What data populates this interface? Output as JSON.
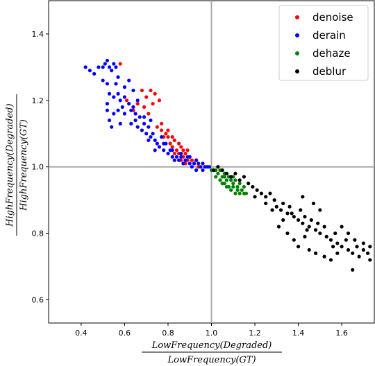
{
  "chart_data": {
    "type": "scatter",
    "xlabel_numerator": "LowFrequency(Degraded)",
    "xlabel_denominator": "LowFrequency(GT)",
    "ylabel_numerator": "HighFrequency(Degraded)",
    "ylabel_denominator": "HighFrequency(GT)",
    "xlim": [
      0.25,
      1.75
    ],
    "ylim": [
      0.53,
      1.5
    ],
    "xticks": [
      "0.4",
      "0.6",
      "0.8",
      "1.0",
      "1.2",
      "1.4",
      "1.6"
    ],
    "xtick_values": [
      0.4,
      0.6,
      0.8,
      1.0,
      1.2,
      1.4,
      1.6
    ],
    "yticks": [
      "0.6",
      "0.8",
      "1.0",
      "1.2",
      "1.4"
    ],
    "ytick_values": [
      0.6,
      0.8,
      1.0,
      1.2,
      1.4
    ],
    "reference_lines": {
      "x": 1.0,
      "y": 1.0,
      "color": "#aaaaaa"
    },
    "legend_position": "top-right",
    "series": [
      {
        "name": "denoise",
        "color": "#ff0000",
        "points": [
          [
            0.58,
            1.31
          ],
          [
            0.61,
            1.2
          ],
          [
            0.64,
            1.17
          ],
          [
            0.66,
            1.19
          ],
          [
            0.68,
            1.23
          ],
          [
            0.69,
            1.18
          ],
          [
            0.7,
            1.21
          ],
          [
            0.71,
            1.16
          ],
          [
            0.72,
            1.23
          ],
          [
            0.73,
            1.19
          ],
          [
            0.74,
            1.22
          ],
          [
            0.75,
            1.12
          ],
          [
            0.76,
            1.2
          ],
          [
            0.77,
            1.13
          ],
          [
            0.78,
            1.09
          ],
          [
            0.79,
            1.1
          ],
          [
            0.8,
            1.11
          ],
          [
            0.81,
            1.07
          ],
          [
            0.82,
            1.06
          ],
          [
            0.83,
            1.08
          ],
          [
            0.84,
            1.05
          ],
          [
            0.85,
            1.07
          ],
          [
            0.85,
            1.04
          ],
          [
            0.86,
            1.06
          ],
          [
            0.87,
            1.03
          ],
          [
            0.87,
            1.05
          ],
          [
            0.88,
            1.04
          ],
          [
            0.89,
            1.02
          ],
          [
            0.9,
            1.03
          ],
          [
            0.91,
            1.02
          ],
          [
            0.92,
            1.01
          ],
          [
            0.93,
            1.02
          ],
          [
            0.94,
            1.0
          ],
          [
            0.83,
            1.04
          ],
          [
            0.86,
            1.02
          ],
          [
            0.89,
            1.05
          ],
          [
            0.8,
            1.09
          ],
          [
            0.77,
            1.11
          ],
          [
            0.82,
            1.09
          ],
          [
            0.88,
            1.01
          ]
        ]
      },
      {
        "name": "derain",
        "color": "#0000ff",
        "points": [
          [
            0.42,
            1.3
          ],
          [
            0.44,
            1.29
          ],
          [
            0.46,
            1.28
          ],
          [
            0.48,
            1.3
          ],
          [
            0.5,
            1.3
          ],
          [
            0.51,
            1.31
          ],
          [
            0.52,
            1.32
          ],
          [
            0.53,
            1.3
          ],
          [
            0.54,
            1.29
          ],
          [
            0.55,
            1.31
          ],
          [
            0.56,
            1.3
          ],
          [
            0.57,
            1.27
          ],
          [
            0.52,
            1.25
          ],
          [
            0.5,
            1.26
          ],
          [
            0.53,
            1.22
          ],
          [
            0.55,
            1.21
          ],
          [
            0.57,
            1.22
          ],
          [
            0.58,
            1.2
          ],
          [
            0.6,
            1.24
          ],
          [
            0.59,
            1.18
          ],
          [
            0.57,
            1.17
          ],
          [
            0.55,
            1.16
          ],
          [
            0.53,
            1.14
          ],
          [
            0.52,
            1.17
          ],
          [
            0.54,
            1.12
          ],
          [
            0.58,
            1.13
          ],
          [
            0.6,
            1.16
          ],
          [
            0.62,
            1.19
          ],
          [
            0.63,
            1.13
          ],
          [
            0.64,
            1.18
          ],
          [
            0.65,
            1.14
          ],
          [
            0.66,
            1.12
          ],
          [
            0.67,
            1.15
          ],
          [
            0.68,
            1.11
          ],
          [
            0.69,
            1.13
          ],
          [
            0.7,
            1.1
          ],
          [
            0.71,
            1.12
          ],
          [
            0.72,
            1.09
          ],
          [
            0.73,
            1.1
          ],
          [
            0.74,
            1.08
          ],
          [
            0.75,
            1.07
          ],
          [
            0.76,
            1.06
          ],
          [
            0.77,
            1.09
          ],
          [
            0.78,
            1.05
          ],
          [
            0.79,
            1.07
          ],
          [
            0.8,
            1.04
          ],
          [
            0.81,
            1.05
          ],
          [
            0.82,
            1.03
          ],
          [
            0.83,
            1.02
          ],
          [
            0.84,
            1.03
          ],
          [
            0.85,
            1.02
          ],
          [
            0.86,
            1.03
          ],
          [
            0.87,
            1.01
          ],
          [
            0.88,
            1.02
          ],
          [
            0.89,
            1.03
          ],
          [
            0.9,
            1.01
          ],
          [
            0.91,
            1.0
          ],
          [
            0.92,
            1.01
          ],
          [
            0.93,
            1.02
          ],
          [
            0.94,
            1.01
          ],
          [
            0.95,
            1.0
          ],
          [
            0.96,
            1.01
          ],
          [
            0.97,
            1.0
          ],
          [
            0.98,
            1.0
          ],
          [
            0.99,
            1.0
          ],
          [
            0.62,
            1.26
          ],
          [
            0.64,
            1.23
          ],
          [
            0.66,
            1.2
          ],
          [
            0.63,
            1.17
          ],
          [
            0.65,
            1.16
          ],
          [
            0.6,
            1.21
          ],
          [
            0.56,
            1.25
          ],
          [
            0.52,
            1.19
          ],
          [
            0.71,
            1.08
          ],
          [
            0.74,
            1.05
          ],
          [
            0.78,
            1.07
          ],
          [
            0.82,
            1.05
          ],
          [
            0.86,
            1.04
          ],
          [
            0.9,
            1.03
          ],
          [
            0.93,
            0.99
          ],
          [
            0.96,
            0.99
          ],
          [
            0.69,
            1.15
          ],
          [
            0.72,
            1.14
          ]
        ]
      },
      {
        "name": "dehaze",
        "color": "#008000",
        "points": [
          [
            1.0,
            0.99
          ],
          [
            1.02,
            0.99
          ],
          [
            1.03,
            0.98
          ],
          [
            1.04,
            0.99
          ],
          [
            1.05,
            0.97
          ],
          [
            1.06,
            0.98
          ],
          [
            1.07,
            0.96
          ],
          [
            1.08,
            0.97
          ],
          [
            1.09,
            0.96
          ],
          [
            1.1,
            0.95
          ],
          [
            1.11,
            0.96
          ],
          [
            1.12,
            0.94
          ],
          [
            1.13,
            0.95
          ],
          [
            1.14,
            0.93
          ],
          [
            1.15,
            0.94
          ],
          [
            1.16,
            0.92
          ],
          [
            1.05,
            0.95
          ],
          [
            1.07,
            0.94
          ],
          [
            1.09,
            0.93
          ],
          [
            1.11,
            0.92
          ],
          [
            1.13,
            0.92
          ],
          [
            1.04,
            0.96
          ],
          [
            1.06,
            0.95
          ],
          [
            1.08,
            0.94
          ],
          [
            1.1,
            0.94
          ],
          [
            1.12,
            0.93
          ],
          [
            1.15,
            0.92
          ],
          [
            1.02,
            0.97
          ],
          [
            1.06,
            0.97
          ],
          [
            1.1,
            0.97
          ]
        ]
      },
      {
        "name": "deblur",
        "color": "#000000",
        "points": [
          [
            1.01,
            0.99
          ],
          [
            1.03,
            1.0
          ],
          [
            1.05,
            0.99
          ],
          [
            1.07,
            0.98
          ],
          [
            1.09,
            0.97
          ],
          [
            1.11,
            0.98
          ],
          [
            1.13,
            0.96
          ],
          [
            1.15,
            0.97
          ],
          [
            1.17,
            0.95
          ],
          [
            1.19,
            0.94
          ],
          [
            1.21,
            0.93
          ],
          [
            1.23,
            0.92
          ],
          [
            1.25,
            0.91
          ],
          [
            1.27,
            0.92
          ],
          [
            1.29,
            0.9
          ],
          [
            1.3,
            0.88
          ],
          [
            1.32,
            0.87
          ],
          [
            1.33,
            0.89
          ],
          [
            1.35,
            0.86
          ],
          [
            1.36,
            0.88
          ],
          [
            1.38,
            0.85
          ],
          [
            1.4,
            0.84
          ],
          [
            1.41,
            0.87
          ],
          [
            1.42,
            0.83
          ],
          [
            1.43,
            0.85
          ],
          [
            1.45,
            0.82
          ],
          [
            1.46,
            0.84
          ],
          [
            1.48,
            0.81
          ],
          [
            1.49,
            0.83
          ],
          [
            1.5,
            0.8
          ],
          [
            1.52,
            0.82
          ],
          [
            1.53,
            0.79
          ],
          [
            1.55,
            0.78
          ],
          [
            1.57,
            0.8
          ],
          [
            1.58,
            0.77
          ],
          [
            1.6,
            0.76
          ],
          [
            1.62,
            0.78
          ],
          [
            1.63,
            0.75
          ],
          [
            1.65,
            0.74
          ],
          [
            1.67,
            0.76
          ],
          [
            1.68,
            0.73
          ],
          [
            1.7,
            0.75
          ],
          [
            1.72,
            0.74
          ],
          [
            1.73,
            0.72
          ],
          [
            1.35,
            0.8
          ],
          [
            1.38,
            0.78
          ],
          [
            1.4,
            0.76
          ],
          [
            1.43,
            0.79
          ],
          [
            1.45,
            0.75
          ],
          [
            1.48,
            0.74
          ],
          [
            1.52,
            0.73
          ],
          [
            1.55,
            0.72
          ],
          [
            1.58,
            0.74
          ],
          [
            1.65,
            0.69
          ],
          [
            1.5,
            0.87
          ],
          [
            1.47,
            0.89
          ],
          [
            1.42,
            0.91
          ],
          [
            1.37,
            0.86
          ],
          [
            1.33,
            0.84
          ],
          [
            1.28,
            0.87
          ],
          [
            1.25,
            0.89
          ],
          [
            1.2,
            0.91
          ],
          [
            1.6,
            0.82
          ],
          [
            1.63,
            0.8
          ],
          [
            1.66,
            0.78
          ],
          [
            1.7,
            0.77
          ],
          [
            1.73,
            0.76
          ],
          [
            1.44,
            0.81
          ],
          [
            1.56,
            0.76
          ],
          [
            1.31,
            0.82
          ]
        ]
      }
    ]
  }
}
